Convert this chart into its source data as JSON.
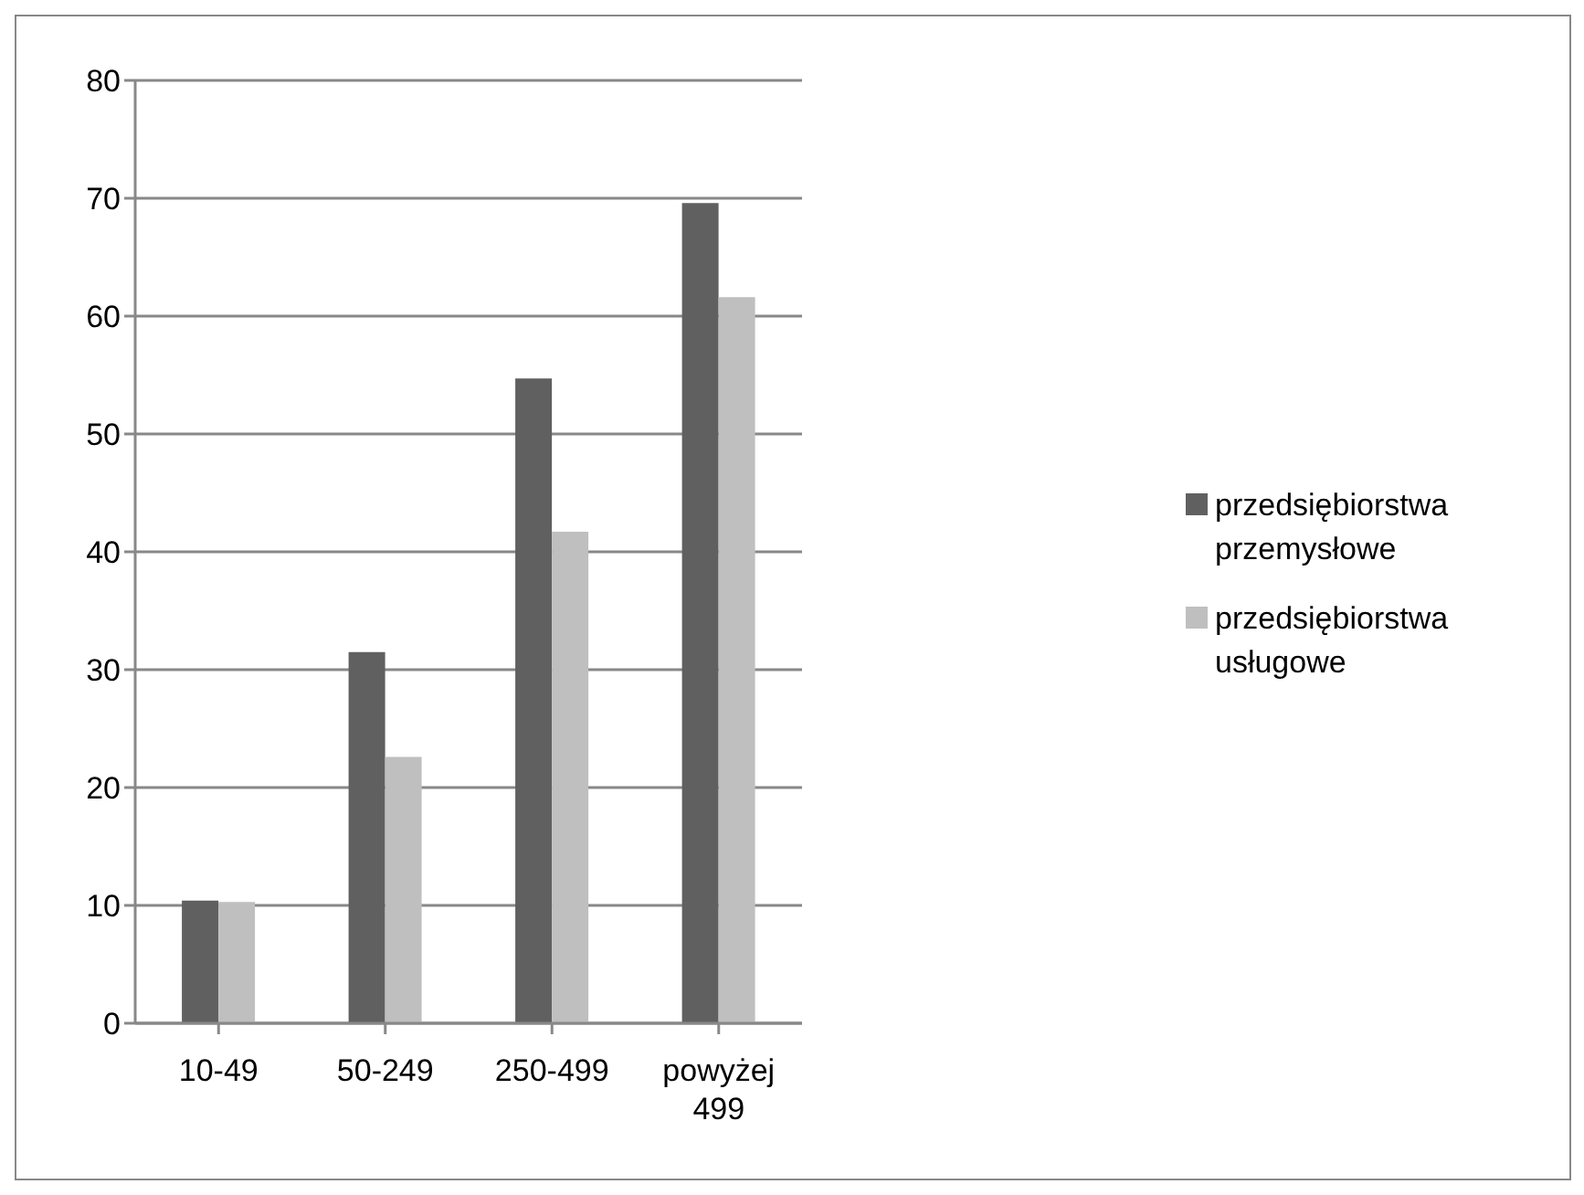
{
  "chart_data": {
    "type": "bar",
    "categories": [
      "10-49",
      "50-249",
      "250-499",
      "powyżej 499"
    ],
    "series": [
      {
        "name": "przedsiębiorstwa przemysłowe",
        "color": "#606060",
        "values": [
          10.4,
          31.5,
          54.7,
          69.6
        ]
      },
      {
        "name": "przedsiębiorstwa usługowe",
        "color": "#bfbfbf",
        "values": [
          10.3,
          22.6,
          41.7,
          61.6
        ]
      }
    ],
    "ylim": [
      0,
      80
    ],
    "yticks": [
      0,
      10,
      20,
      30,
      40,
      50,
      60,
      70,
      80
    ],
    "grid": "y",
    "legend": "right"
  }
}
